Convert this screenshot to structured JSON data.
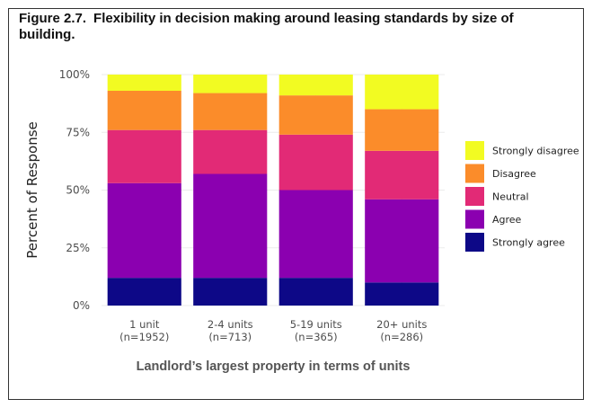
{
  "title_number": "Figure 2.7.",
  "title_text": "Flexibility in decision making around leasing standards by size of building.",
  "chart_data": {
    "type": "bar",
    "stacked": true,
    "normalized": true,
    "categories": [
      "1 unit\n(n=1952)",
      "2-4 units\n(n=713)",
      "5-19 units\n(n=365)",
      "20+ units\n(n=286)"
    ],
    "series": [
      {
        "name": "Strongly agree",
        "color": "#0d0887",
        "values": [
          12,
          12,
          12,
          10
        ]
      },
      {
        "name": "Agree",
        "color": "#8b00b0",
        "values": [
          41,
          45,
          38,
          36
        ]
      },
      {
        "name": "Neutral",
        "color": "#e22a76",
        "values": [
          23,
          19,
          24,
          21
        ]
      },
      {
        "name": "Disagree",
        "color": "#fb8c2a",
        "values": [
          17,
          16,
          17,
          18
        ]
      },
      {
        "name": "Strongly disagree",
        "color": "#f2fb22",
        "values": [
          7,
          8,
          9,
          15
        ]
      }
    ],
    "legend_order": [
      "Strongly disagree",
      "Disagree",
      "Neutral",
      "Agree",
      "Strongly agree"
    ],
    "yticks": [
      "0%",
      "25%",
      "50%",
      "75%",
      "100%"
    ],
    "ylim": [
      0,
      100
    ],
    "xlabel": "Landlord’s largest property in terms of units",
    "ylabel": "Percent of Response",
    "grid": true,
    "legend_position": "right"
  }
}
